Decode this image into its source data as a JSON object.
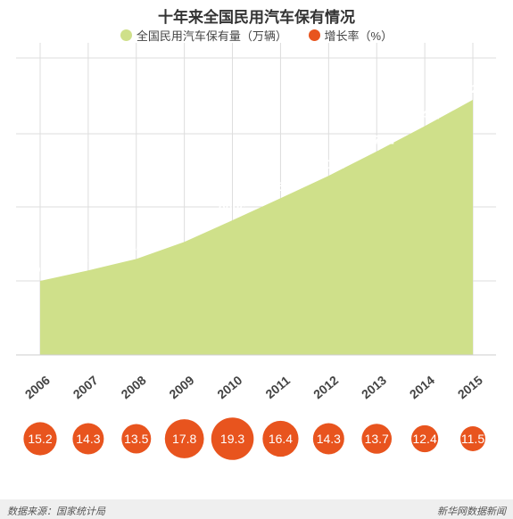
{
  "chart_data": {
    "type": "area",
    "title": "十年来全国民用汽车保有情况",
    "categories": [
      "2006",
      "2007",
      "2008",
      "2009",
      "2010",
      "2011",
      "2012",
      "2013",
      "2014",
      "2015"
    ],
    "series": [
      {
        "name": "全国民用汽车保有量（万辆）",
        "values": [
          4985,
          5697,
          6467,
          7619,
          9086,
          10578,
          12089,
          13741,
          15447,
          17228
        ]
      },
      {
        "name": "增长率（%）",
        "values": [
          15.2,
          14.3,
          13.5,
          17.8,
          19.3,
          16.4,
          14.3,
          13.7,
          12.4,
          11.5
        ]
      }
    ],
    "colors": {
      "area": "#cfe08a",
      "growth": "#e8541e",
      "grid": "#dddddd",
      "axis": "#cccccc"
    },
    "grid": true
  },
  "footer": {
    "source": "数据来源：国家统计局",
    "brand": "新华网数据新闻"
  }
}
